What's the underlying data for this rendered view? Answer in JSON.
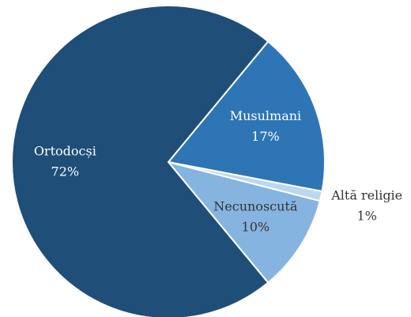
{
  "chart_data": {
    "type": "pie",
    "categories": [
      "Musulmani",
      "Altă religie",
      "Necunoscută",
      "Ortodocși"
    ],
    "values": [
      17,
      1,
      10,
      72
    ],
    "value_labels": [
      "17%",
      "1%",
      "10%",
      "72%"
    ],
    "colors": [
      "#2e75b6",
      "#bdd7ee",
      "#86b4e0",
      "#1f4e79"
    ]
  }
}
